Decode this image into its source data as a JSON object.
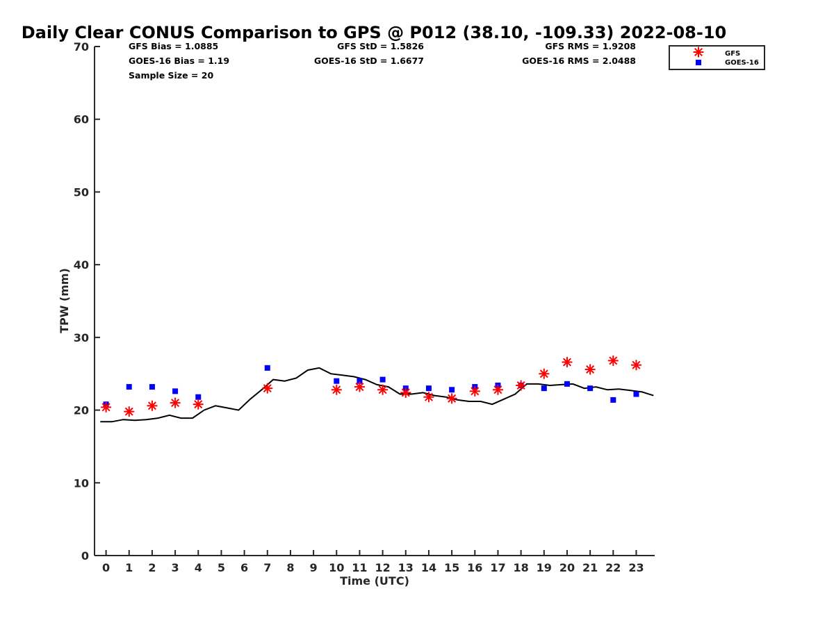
{
  "chart_data": {
    "type": "scatter",
    "title": "Daily Clear CONUS Comparison to GPS @ P012 (38.10, -109.33) 2022-08-10",
    "xlabel": "Time (UTC)",
    "ylabel": "TPW (mm)",
    "xlim": [
      -0.5,
      23.8
    ],
    "ylim": [
      0,
      70
    ],
    "xticks": [
      0,
      1,
      2,
      3,
      4,
      5,
      6,
      7,
      8,
      9,
      10,
      11,
      12,
      13,
      14,
      15,
      16,
      17,
      18,
      19,
      20,
      21,
      22,
      23
    ],
    "yticks": [
      0,
      10,
      20,
      30,
      40,
      50,
      60,
      70
    ],
    "grid": false,
    "legend_position": "top-right",
    "series": [
      {
        "name": "GFS",
        "marker": "asterisk",
        "color": "#ff0000",
        "x": [
          0,
          1,
          2,
          3,
          4,
          7,
          10,
          11,
          12,
          13,
          14,
          15,
          16,
          17,
          18,
          19,
          20,
          21,
          22,
          23
        ],
        "y": [
          20.4,
          19.8,
          20.6,
          21.0,
          20.8,
          23.0,
          22.8,
          23.2,
          22.8,
          22.4,
          21.8,
          21.6,
          22.6,
          22.8,
          23.4,
          25.0,
          26.6,
          25.6,
          26.8,
          26.2
        ]
      },
      {
        "name": "GOES-16",
        "marker": "square",
        "color": "#0000ff",
        "x": [
          0,
          1,
          2,
          3,
          4,
          7,
          10,
          11,
          12,
          13,
          14,
          15,
          16,
          17,
          18,
          19,
          20,
          21,
          22,
          23
        ],
        "y": [
          20.8,
          23.2,
          23.2,
          22.6,
          21.8,
          25.8,
          24.0,
          24.0,
          24.2,
          23.0,
          23.0,
          22.8,
          23.2,
          23.4,
          23.4,
          23.0,
          23.6,
          23.0,
          21.4,
          22.2
        ]
      },
      {
        "name": "GPS",
        "marker": "line",
        "color": "#000000",
        "x": [
          -0.25,
          0.25,
          0.75,
          1.25,
          1.75,
          2.25,
          2.75,
          3.25,
          3.75,
          4.25,
          4.75,
          5.25,
          5.75,
          6.25,
          6.75,
          7.25,
          7.75,
          8.25,
          8.75,
          9.25,
          9.75,
          10.25,
          10.75,
          11.25,
          11.75,
          12.25,
          12.75,
          13.25,
          13.75,
          14.25,
          14.75,
          15.25,
          15.75,
          16.25,
          16.75,
          17.25,
          17.75,
          18.25,
          18.75,
          19.25,
          19.75,
          20.25,
          20.75,
          21.25,
          21.75,
          22.25,
          22.75,
          23.25,
          23.75
        ],
        "y": [
          18.4,
          18.4,
          18.7,
          18.6,
          18.7,
          18.9,
          19.3,
          18.9,
          18.9,
          20.0,
          20.6,
          20.3,
          20.0,
          21.5,
          22.8,
          24.2,
          24.0,
          24.4,
          25.5,
          25.8,
          25.0,
          24.8,
          24.6,
          24.2,
          23.5,
          23.2,
          22.2,
          22.2,
          22.4,
          22.0,
          21.8,
          21.4,
          21.2,
          21.2,
          20.8,
          21.5,
          22.2,
          23.6,
          23.6,
          23.4,
          23.5,
          23.6,
          23.0,
          23.2,
          22.8,
          22.9,
          22.7,
          22.5,
          22.0
        ]
      }
    ],
    "stats": {
      "gfs_bias": "GFS Bias = 1.0885",
      "goes_bias": "GOES-16 Bias = 1.19",
      "sample_size": "Sample Size = 20",
      "gfs_std": "GFS StD = 1.5826",
      "goes_std": "GOES-16 StD = 1.6677",
      "gfs_rms": "GFS RMS = 1.9208",
      "goes_rms": "GOES-16 RMS = 2.0488"
    },
    "legend": {
      "gfs": "GFS",
      "goes": "GOES-16"
    }
  }
}
